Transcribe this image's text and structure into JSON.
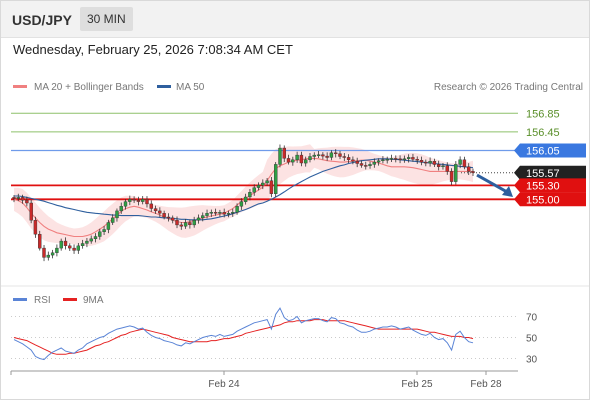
{
  "header": {
    "pair": "USD/JPY",
    "timeframe": "30 MIN"
  },
  "datetime": "Wednesday, February 25, 2026 7:08:34 AM CET",
  "legend": {
    "ma20_label": "MA 20 + Bollinger Bands",
    "ma20_color": "#f08080",
    "ma50_label": "MA 50",
    "ma50_color": "#2e5f9e",
    "rsi_label": "RSI",
    "rsi_color": "#5a84d6",
    "ma9_label": "9MA",
    "ma9_color": "#e52222"
  },
  "copyright": "Research © 2026 Trading Central",
  "chart_data": [
    {
      "type": "candlestick",
      "ylim": [
        153.2,
        157.2
      ],
      "x_tick_labels": [
        "Feb 24",
        "Feb 25",
        "Feb 28"
      ],
      "price_levels": [
        {
          "value": 156.85,
          "label": "156.85",
          "style": "resistance-green"
        },
        {
          "value": 156.45,
          "label": "156.45",
          "style": "resistance-green"
        },
        {
          "value": 156.05,
          "label": "156.05",
          "style": "pivot-blue"
        },
        {
          "value": 155.57,
          "label": "155.57",
          "style": "current-price"
        },
        {
          "value": 155.3,
          "label": "155.30",
          "style": "support-red"
        },
        {
          "value": 155.0,
          "label": "155.00",
          "style": "support-red"
        }
      ],
      "forecast_arrow": {
        "from": 155.52,
        "to": 155.05,
        "direction": "down"
      },
      "series": [
        {
          "name": "Price",
          "close": [
            155.02,
            155.04,
            154.98,
            154.92,
            154.55,
            154.25,
            153.95,
            153.75,
            153.8,
            153.85,
            153.95,
            154.1,
            154.0,
            153.95,
            153.9,
            154.0,
            154.05,
            154.1,
            154.15,
            154.2,
            154.3,
            154.35,
            154.5,
            154.6,
            154.75,
            154.85,
            154.95,
            155.0,
            154.98,
            154.95,
            155.0,
            154.9,
            154.8,
            154.75,
            154.7,
            154.62,
            154.6,
            154.55,
            154.45,
            154.42,
            154.5,
            154.45,
            154.55,
            154.6,
            154.65,
            154.7,
            154.72,
            154.7,
            154.72,
            154.68,
            154.7,
            154.72,
            154.85,
            154.95,
            155.05,
            155.15,
            155.25,
            155.3,
            155.35,
            155.4,
            155.12,
            155.75,
            156.1,
            155.88,
            155.8,
            155.85,
            155.95,
            155.78,
            155.85,
            155.92,
            155.95,
            155.96,
            155.93,
            155.9,
            156.0,
            155.98,
            155.92,
            155.9,
            155.85,
            155.82,
            155.77,
            155.73,
            155.72,
            155.75,
            155.8,
            155.83,
            155.85,
            155.86,
            155.88,
            155.87,
            155.85,
            155.87,
            155.9,
            155.86,
            155.84,
            155.8,
            155.78,
            155.82,
            155.75,
            155.7,
            155.72,
            155.6,
            155.38,
            155.75,
            155.85,
            155.7,
            155.6,
            155.57
          ]
        }
      ],
      "ma20": [
        155.0,
        154.97,
        154.92,
        154.82,
        154.7,
        154.6,
        154.5,
        154.42,
        154.36,
        154.32,
        154.28,
        154.26,
        154.24,
        154.22,
        154.2,
        154.2,
        154.2,
        154.22,
        154.25,
        154.3,
        154.36,
        154.42,
        154.5,
        154.58,
        154.66,
        154.74,
        154.8,
        154.83,
        154.85,
        154.83,
        154.8,
        154.77,
        154.73,
        154.7,
        154.66,
        154.62,
        154.58,
        154.55,
        154.52,
        154.5,
        154.5,
        154.52,
        154.54,
        154.57,
        154.6,
        154.62,
        154.64,
        154.66,
        154.68,
        154.7,
        154.75,
        154.8,
        154.88,
        154.95,
        155.02,
        155.08,
        155.14,
        155.2,
        155.26,
        155.4,
        155.54,
        155.66,
        155.72,
        155.76,
        155.8,
        155.82,
        155.84,
        155.85,
        155.87,
        155.88,
        155.88,
        155.87,
        155.85,
        155.83,
        155.82,
        155.81,
        155.8,
        155.8,
        155.81,
        155.82,
        155.83,
        155.84,
        155.84,
        155.82,
        155.8,
        155.78,
        155.75,
        155.72,
        155.7,
        155.7,
        155.7,
        155.7,
        155.69,
        155.68,
        155.66,
        155.64,
        155.62,
        155.6,
        155.6,
        155.6,
        155.6,
        155.6,
        155.6,
        155.6,
        155.6,
        155.6,
        155.6,
        155.6
      ],
      "ma50": [
        155.07,
        155.07,
        155.06,
        155.04,
        155.02,
        155.0,
        154.98,
        154.96,
        154.93,
        154.9,
        154.87,
        154.85,
        154.82,
        154.8,
        154.78,
        154.76,
        154.74,
        154.72,
        154.71,
        154.7,
        154.69,
        154.68,
        154.67,
        154.66,
        154.66,
        154.65,
        154.65,
        154.65,
        154.65,
        154.65,
        154.64,
        154.63,
        154.62,
        154.62,
        154.61,
        154.6,
        154.6,
        154.59,
        154.58,
        154.57,
        154.57,
        154.56,
        154.56,
        154.56,
        154.56,
        154.57,
        154.58,
        154.6,
        154.62,
        154.64,
        154.66,
        154.69,
        154.72,
        154.75,
        154.78,
        154.82,
        154.86,
        154.9,
        154.92,
        154.96,
        155.0,
        155.05,
        155.1,
        155.16,
        155.22,
        155.28,
        155.33,
        155.38,
        155.43,
        155.48,
        155.52,
        155.56,
        155.6,
        155.63,
        155.66,
        155.69,
        155.72,
        155.74,
        155.77,
        155.79,
        155.81,
        155.83,
        155.84,
        155.85,
        155.86,
        155.87,
        155.87,
        155.87,
        155.86,
        155.86,
        155.85,
        155.84,
        155.83,
        155.82,
        155.81,
        155.8,
        155.79,
        155.78,
        155.77,
        155.76,
        155.75,
        155.74,
        155.73,
        155.72,
        155.71,
        155.7,
        155.69,
        155.68
      ]
    },
    {
      "type": "line",
      "ylim": [
        20,
        80
      ],
      "y_tick_labels": [
        "70",
        "50",
        "30"
      ],
      "series": [
        {
          "name": "RSI",
          "values": [
            48,
            46,
            44,
            41,
            38,
            32,
            30,
            29,
            33,
            36,
            38,
            40,
            37,
            36,
            35,
            38,
            40,
            44,
            46,
            48,
            50,
            51,
            54,
            56,
            58,
            59,
            60,
            61,
            60,
            58,
            59,
            55,
            52,
            50,
            49,
            47,
            46,
            45,
            43,
            42,
            45,
            44,
            46,
            48,
            50,
            51,
            52,
            51,
            53,
            51,
            52,
            53,
            56,
            58,
            60,
            62,
            64,
            65,
            66,
            67,
            58,
            72,
            78,
            69,
            66,
            67,
            70,
            64,
            66,
            67,
            68,
            68,
            66,
            65,
            69,
            68,
            64,
            63,
            61,
            60,
            57,
            55,
            55,
            56,
            58,
            59,
            60,
            60,
            61,
            60,
            58,
            59,
            60,
            57,
            55,
            53,
            52,
            54,
            50,
            48,
            49,
            45,
            38,
            53,
            56,
            50,
            46,
            45
          ]
        },
        {
          "name": "9MA",
          "values": [
            50,
            49,
            48,
            47,
            45,
            43,
            41,
            39,
            37,
            35,
            34,
            34,
            34,
            35,
            35,
            36,
            37,
            38,
            40,
            42,
            43,
            45,
            46,
            48,
            50,
            52,
            53,
            55,
            56,
            57,
            58,
            57,
            56,
            55,
            54,
            53,
            52,
            50,
            49,
            48,
            47,
            46,
            46,
            46,
            46,
            46,
            47,
            47,
            48,
            49,
            49,
            50,
            51,
            52,
            54,
            55,
            56,
            57,
            58,
            59,
            60,
            61,
            62,
            64,
            65,
            65,
            66,
            66,
            66,
            66,
            67,
            67,
            67,
            66,
            66,
            66,
            66,
            66,
            65,
            64,
            63,
            62,
            61,
            60,
            59,
            58,
            58,
            58,
            58,
            58,
            58,
            58,
            58,
            58,
            58,
            57,
            56,
            55,
            55,
            54,
            53,
            52,
            51,
            51,
            51,
            50,
            50,
            49
          ]
        }
      ]
    }
  ]
}
